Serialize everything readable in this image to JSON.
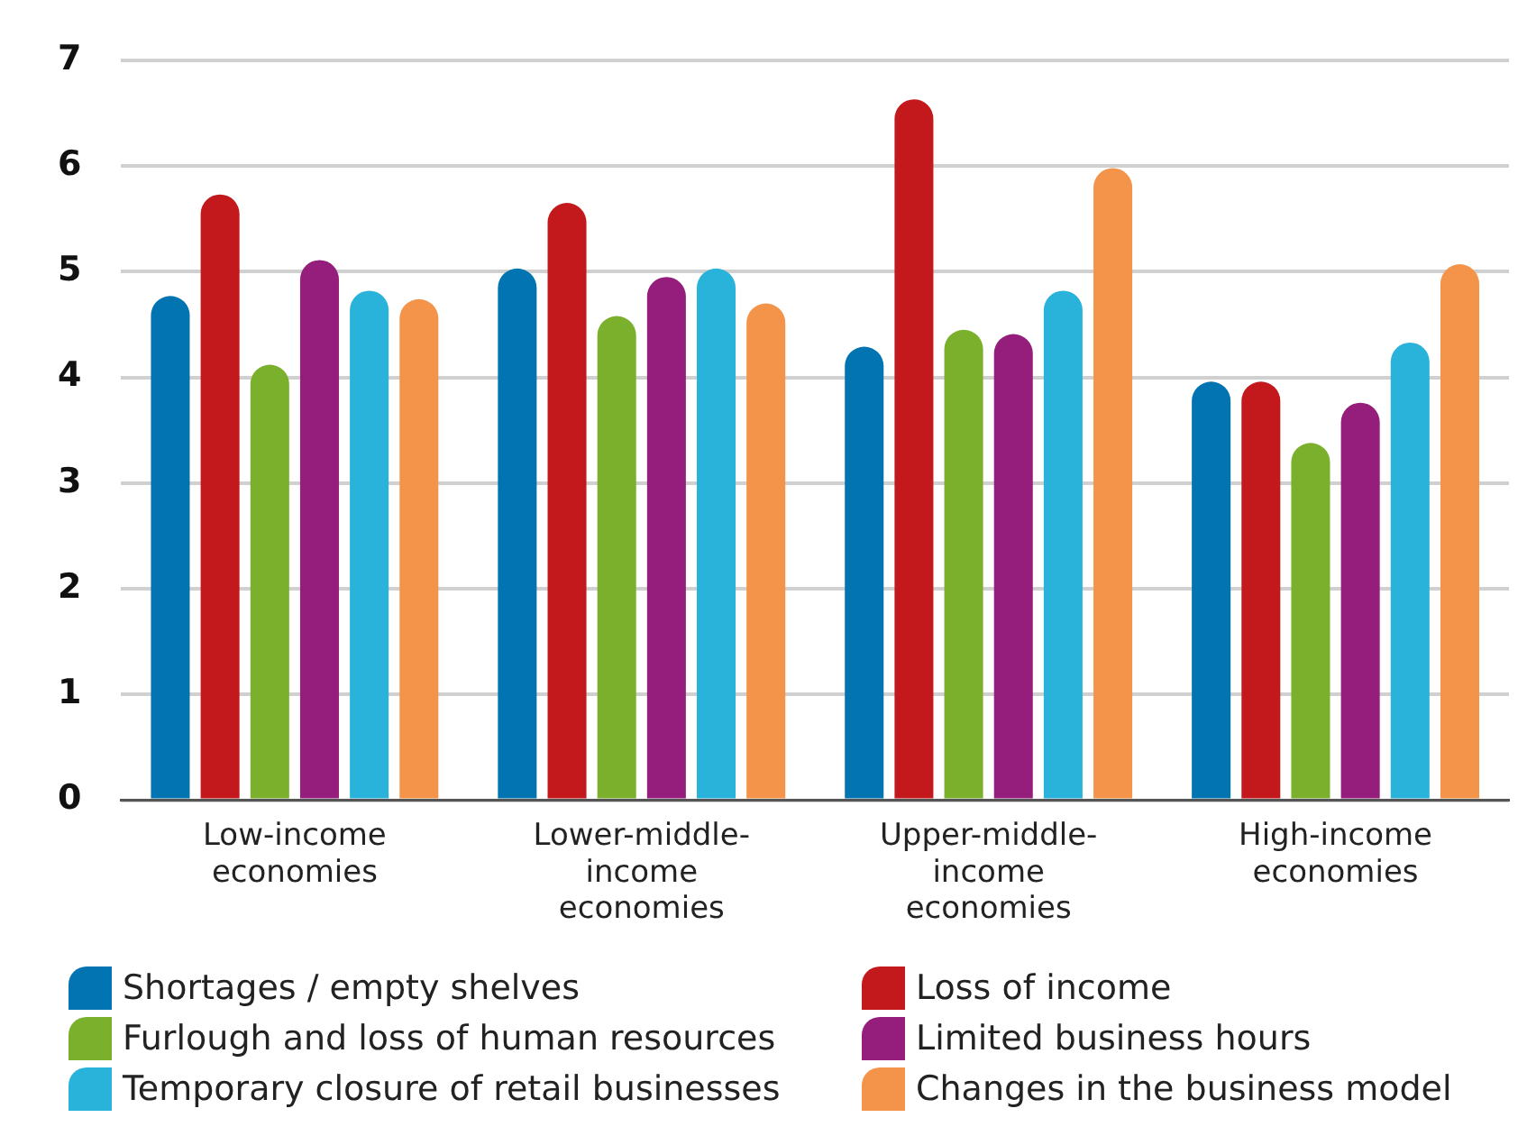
{
  "chart_data": {
    "type": "bar",
    "categories": [
      "Low-income economies",
      "Lower-middle-income economies",
      "Upper-middle-income economies",
      "High-income economies"
    ],
    "series": [
      {
        "name": "Shortages / empty shelves",
        "color": "#0174b1",
        "values": [
          4.77,
          5.03,
          4.29,
          3.96
        ]
      },
      {
        "name": "Loss of income",
        "color": "#c4191c",
        "values": [
          5.73,
          5.65,
          6.63,
          3.96
        ]
      },
      {
        "name": "Furlough and loss of human resources",
        "color": "#7ab02c",
        "values": [
          4.12,
          4.58,
          4.45,
          3.38
        ]
      },
      {
        "name": "Limited business hours",
        "color": "#951e7c",
        "values": [
          5.11,
          4.95,
          4.41,
          3.76
        ]
      },
      {
        "name": "Temporary closure of retail businesses",
        "color": "#2ab3da",
        "values": [
          4.82,
          5.03,
          4.82,
          4.33
        ]
      },
      {
        "name": "Changes in the business model",
        "color": "#f4944a",
        "values": [
          4.74,
          4.7,
          5.98,
          5.07
        ]
      }
    ],
    "ylim": [
      0,
      7
    ],
    "yticks": [
      0,
      1,
      2,
      3,
      4,
      5,
      6,
      7
    ],
    "grid": "y",
    "legend": "bottom"
  }
}
